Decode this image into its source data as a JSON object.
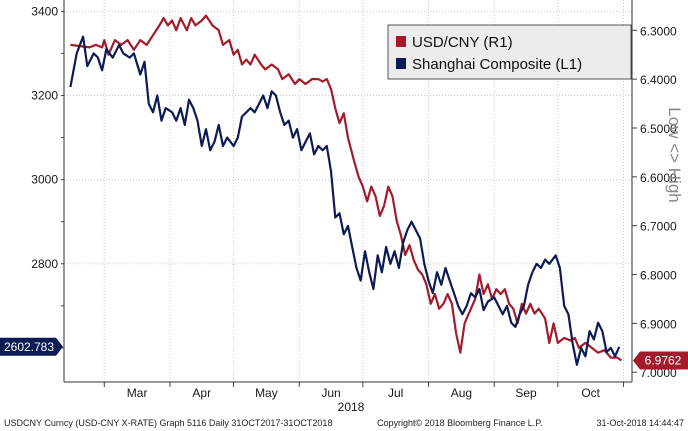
{
  "chart_data": {
    "type": "line",
    "title": "",
    "xlabel": "2018",
    "months": [
      "Mar",
      "Apr",
      "May",
      "Jun",
      "Jul",
      "Aug",
      "Sep",
      "Oct"
    ],
    "left_axis": {
      "label": "",
      "ticks": [
        "3400",
        "3200",
        "3000",
        "2800"
      ],
      "range": [
        2519,
        3427
      ]
    },
    "right_axis": {
      "label": "Low <> High",
      "inverted": true,
      "ticks": [
        "6.3000",
        "6.4000",
        "6.5000",
        "6.6000",
        "6.7000",
        "6.8000",
        "6.9000",
        "7.0000"
      ],
      "range": [
        6.238,
        7.02
      ]
    },
    "grid": true,
    "legend_position": "top-right",
    "series": [
      {
        "name": "USD/CNY (R1)",
        "axis": "right",
        "color": "#a31b2b",
        "last_value_label": "6.9762",
        "points": [
          [
            "2018-02-13",
            6.33
          ],
          [
            "2018-02-22",
            6.335
          ],
          [
            "2018-02-25",
            6.33
          ],
          [
            "2018-02-28",
            6.335
          ],
          [
            "2018-03-01",
            6.32
          ],
          [
            "2018-03-03",
            6.35
          ],
          [
            "2018-03-06",
            6.32
          ],
          [
            "2018-03-09",
            6.33
          ],
          [
            "2018-03-12",
            6.32
          ],
          [
            "2018-03-15",
            6.34
          ],
          [
            "2018-03-18",
            6.32
          ],
          [
            "2018-03-21",
            6.33
          ],
          [
            "2018-03-24",
            6.31
          ],
          [
            "2018-03-27",
            6.29
          ],
          [
            "2018-03-29",
            6.275
          ],
          [
            "2018-03-31",
            6.29
          ],
          [
            "2018-04-02",
            6.28
          ],
          [
            "2018-04-04",
            6.3
          ],
          [
            "2018-04-06",
            6.275
          ],
          [
            "2018-04-09",
            6.3
          ],
          [
            "2018-04-11",
            6.275
          ],
          [
            "2018-04-13",
            6.29
          ],
          [
            "2018-04-16",
            6.28
          ],
          [
            "2018-04-18",
            6.27
          ],
          [
            "2018-04-21",
            6.29
          ],
          [
            "2018-04-24",
            6.3
          ],
          [
            "2018-04-26",
            6.33
          ],
          [
            "2018-04-29",
            6.32
          ],
          [
            "2018-05-01",
            6.35
          ],
          [
            "2018-05-03",
            6.34
          ],
          [
            "2018-05-05",
            6.37
          ],
          [
            "2018-05-07",
            6.36
          ],
          [
            "2018-05-09",
            6.37
          ],
          [
            "2018-05-11",
            6.35
          ],
          [
            "2018-05-14",
            6.37
          ],
          [
            "2018-05-16",
            6.38
          ],
          [
            "2018-05-19",
            6.37
          ],
          [
            "2018-05-22",
            6.38
          ],
          [
            "2018-05-24",
            6.4
          ],
          [
            "2018-05-27",
            6.39
          ],
          [
            "2018-05-30",
            6.41
          ],
          [
            "2018-06-01",
            6.4
          ],
          [
            "2018-06-04",
            6.41
          ],
          [
            "2018-06-07",
            6.4
          ],
          [
            "2018-06-10",
            6.4
          ],
          [
            "2018-06-12",
            6.405
          ],
          [
            "2018-06-14",
            6.4
          ],
          [
            "2018-06-16",
            6.42
          ],
          [
            "2018-06-18",
            6.46
          ],
          [
            "2018-06-20",
            6.49
          ],
          [
            "2018-06-22",
            6.47
          ],
          [
            "2018-06-24",
            6.52
          ],
          [
            "2018-06-27",
            6.57
          ],
          [
            "2018-06-29",
            6.6
          ],
          [
            "2018-07-01",
            6.62
          ],
          [
            "2018-07-03",
            6.65
          ],
          [
            "2018-07-05",
            6.62
          ],
          [
            "2018-07-07",
            6.64
          ],
          [
            "2018-07-09",
            6.68
          ],
          [
            "2018-07-11",
            6.66
          ],
          [
            "2018-07-13",
            6.62
          ],
          [
            "2018-07-15",
            6.64
          ],
          [
            "2018-07-17",
            6.69
          ],
          [
            "2018-07-19",
            6.72
          ],
          [
            "2018-07-21",
            6.76
          ],
          [
            "2018-07-23",
            6.74
          ],
          [
            "2018-07-25",
            6.77
          ],
          [
            "2018-07-27",
            6.79
          ],
          [
            "2018-07-29",
            6.8
          ],
          [
            "2018-07-31",
            6.82
          ],
          [
            "2018-08-02",
            6.86
          ],
          [
            "2018-08-04",
            6.84
          ],
          [
            "2018-08-06",
            6.87
          ],
          [
            "2018-08-08",
            6.86
          ],
          [
            "2018-08-10",
            6.84
          ],
          [
            "2018-08-12",
            6.86
          ],
          [
            "2018-08-14",
            6.92
          ],
          [
            "2018-08-16",
            6.96
          ],
          [
            "2018-08-18",
            6.9
          ],
          [
            "2018-08-20",
            6.88
          ],
          [
            "2018-08-23",
            6.85
          ],
          [
            "2018-08-25",
            6.8
          ],
          [
            "2018-08-27",
            6.84
          ],
          [
            "2018-08-29",
            6.82
          ],
          [
            "2018-08-31",
            6.85
          ],
          [
            "2018-09-02",
            6.83
          ],
          [
            "2018-09-04",
            6.84
          ],
          [
            "2018-09-06",
            6.83
          ],
          [
            "2018-09-08",
            6.86
          ],
          [
            "2018-09-10",
            6.87
          ],
          [
            "2018-09-12",
            6.9
          ],
          [
            "2018-09-14",
            6.86
          ],
          [
            "2018-09-16",
            6.88
          ],
          [
            "2018-09-18",
            6.86
          ],
          [
            "2018-09-20",
            6.88
          ],
          [
            "2018-09-22",
            6.87
          ],
          [
            "2018-09-25",
            6.89
          ],
          [
            "2018-09-27",
            6.94
          ],
          [
            "2018-09-29",
            6.9
          ],
          [
            "2018-10-01",
            6.94
          ],
          [
            "2018-10-04",
            6.93
          ],
          [
            "2018-10-07",
            6.935
          ],
          [
            "2018-10-09",
            6.93
          ],
          [
            "2018-10-11",
            6.95
          ],
          [
            "2018-10-14",
            6.94
          ],
          [
            "2018-10-17",
            6.95
          ],
          [
            "2018-10-20",
            6.96
          ],
          [
            "2018-10-23",
            6.955
          ],
          [
            "2018-10-26",
            6.97
          ],
          [
            "2018-10-29",
            6.97
          ],
          [
            "2018-10-31",
            6.976
          ]
        ]
      },
      {
        "name": "Shanghai Composite (L1)",
        "axis": "left",
        "color": "#0c1a55",
        "last_value_label": "2602.783",
        "points": [
          [
            "2018-02-13",
            3220
          ],
          [
            "2018-02-16",
            3300
          ],
          [
            "2018-02-19",
            3340
          ],
          [
            "2018-02-21",
            3270
          ],
          [
            "2018-02-24",
            3300
          ],
          [
            "2018-02-26",
            3290
          ],
          [
            "2018-02-28",
            3260
          ],
          [
            "2018-03-02",
            3310
          ],
          [
            "2018-03-05",
            3290
          ],
          [
            "2018-03-08",
            3320
          ],
          [
            "2018-03-10",
            3300
          ],
          [
            "2018-03-13",
            3290
          ],
          [
            "2018-03-15",
            3300
          ],
          [
            "2018-03-18",
            3250
          ],
          [
            "2018-03-20",
            3280
          ],
          [
            "2018-03-22",
            3180
          ],
          [
            "2018-03-24",
            3160
          ],
          [
            "2018-03-26",
            3200
          ],
          [
            "2018-03-28",
            3140
          ],
          [
            "2018-03-30",
            3170
          ],
          [
            "2018-04-02",
            3160
          ],
          [
            "2018-04-04",
            3140
          ],
          [
            "2018-04-06",
            3170
          ],
          [
            "2018-04-08",
            3130
          ],
          [
            "2018-04-10",
            3190
          ],
          [
            "2018-04-12",
            3170
          ],
          [
            "2018-04-14",
            3140
          ],
          [
            "2018-04-16",
            3080
          ],
          [
            "2018-04-18",
            3120
          ],
          [
            "2018-04-20",
            3070
          ],
          [
            "2018-04-22",
            3090
          ],
          [
            "2018-04-24",
            3130
          ],
          [
            "2018-04-26",
            3080
          ],
          [
            "2018-04-28",
            3100
          ],
          [
            "2018-05-01",
            3080
          ],
          [
            "2018-05-03",
            3100
          ],
          [
            "2018-05-05",
            3150
          ],
          [
            "2018-05-07",
            3160
          ],
          [
            "2018-05-09",
            3170
          ],
          [
            "2018-05-11",
            3160
          ],
          [
            "2018-05-13",
            3180
          ],
          [
            "2018-05-15",
            3200
          ],
          [
            "2018-05-17",
            3170
          ],
          [
            "2018-05-19",
            3210
          ],
          [
            "2018-05-21",
            3200
          ],
          [
            "2018-05-23",
            3160
          ],
          [
            "2018-05-25",
            3130
          ],
          [
            "2018-05-27",
            3140
          ],
          [
            "2018-05-29",
            3100
          ],
          [
            "2018-05-31",
            3120
          ],
          [
            "2018-06-02",
            3070
          ],
          [
            "2018-06-04",
            3090
          ],
          [
            "2018-06-06",
            3110
          ],
          [
            "2018-06-08",
            3060
          ],
          [
            "2018-06-10",
            3080
          ],
          [
            "2018-06-12",
            3070
          ],
          [
            "2018-06-14",
            3080
          ],
          [
            "2018-06-16",
            3020
          ],
          [
            "2018-06-18",
            2910
          ],
          [
            "2018-06-20",
            2920
          ],
          [
            "2018-06-22",
            2870
          ],
          [
            "2018-06-24",
            2890
          ],
          [
            "2018-06-26",
            2840
          ],
          [
            "2018-06-28",
            2790
          ],
          [
            "2018-06-30",
            2760
          ],
          [
            "2018-07-02",
            2830
          ],
          [
            "2018-07-04",
            2780
          ],
          [
            "2018-07-06",
            2740
          ],
          [
            "2018-07-08",
            2820
          ],
          [
            "2018-07-10",
            2780
          ],
          [
            "2018-07-12",
            2840
          ],
          [
            "2018-07-14",
            2800
          ],
          [
            "2018-07-16",
            2830
          ],
          [
            "2018-07-18",
            2790
          ],
          [
            "2018-07-20",
            2850
          ],
          [
            "2018-07-22",
            2880
          ],
          [
            "2018-07-24",
            2900
          ],
          [
            "2018-07-26",
            2880
          ],
          [
            "2018-07-28",
            2860
          ],
          [
            "2018-07-30",
            2800
          ],
          [
            "2018-08-01",
            2760
          ],
          [
            "2018-08-03",
            2730
          ],
          [
            "2018-08-05",
            2780
          ],
          [
            "2018-08-07",
            2750
          ],
          [
            "2018-08-09",
            2790
          ],
          [
            "2018-08-11",
            2760
          ],
          [
            "2018-08-13",
            2730
          ],
          [
            "2018-08-15",
            2700
          ],
          [
            "2018-08-17",
            2680
          ],
          [
            "2018-08-19",
            2700
          ],
          [
            "2018-08-21",
            2730
          ],
          [
            "2018-08-23",
            2720
          ],
          [
            "2018-08-25",
            2740
          ],
          [
            "2018-08-27",
            2690
          ],
          [
            "2018-08-29",
            2710
          ],
          [
            "2018-09-01",
            2720
          ],
          [
            "2018-09-03",
            2700
          ],
          [
            "2018-09-05",
            2680
          ],
          [
            "2018-09-07",
            2700
          ],
          [
            "2018-09-09",
            2660
          ],
          [
            "2018-09-11",
            2650
          ],
          [
            "2018-09-13",
            2680
          ],
          [
            "2018-09-15",
            2700
          ],
          [
            "2018-09-17",
            2750
          ],
          [
            "2018-09-19",
            2780
          ],
          [
            "2018-09-21",
            2800
          ],
          [
            "2018-09-23",
            2790
          ],
          [
            "2018-09-25",
            2810
          ],
          [
            "2018-09-27",
            2800
          ],
          [
            "2018-09-30",
            2820
          ],
          [
            "2018-10-02",
            2790
          ],
          [
            "2018-10-04",
            2700
          ],
          [
            "2018-10-06",
            2680
          ],
          [
            "2018-10-08",
            2610
          ],
          [
            "2018-10-10",
            2560
          ],
          [
            "2018-10-12",
            2600
          ],
          [
            "2018-10-14",
            2580
          ],
          [
            "2018-10-16",
            2640
          ],
          [
            "2018-10-18",
            2620
          ],
          [
            "2018-10-20",
            2660
          ],
          [
            "2018-10-22",
            2640
          ],
          [
            "2018-10-24",
            2590
          ],
          [
            "2018-10-26",
            2600
          ],
          [
            "2018-10-28",
            2580
          ],
          [
            "2018-10-30",
            2602.783
          ]
        ]
      }
    ]
  },
  "footer": {
    "left": "USDCNY Curncy (USD-CNY X-RATE) Graph 5116  Daily 31OCT2017-31OCT2018",
    "center": "Copyright© 2018 Bloomberg Finance L.P.",
    "right": "31-Oct-2018 14:44:47"
  }
}
